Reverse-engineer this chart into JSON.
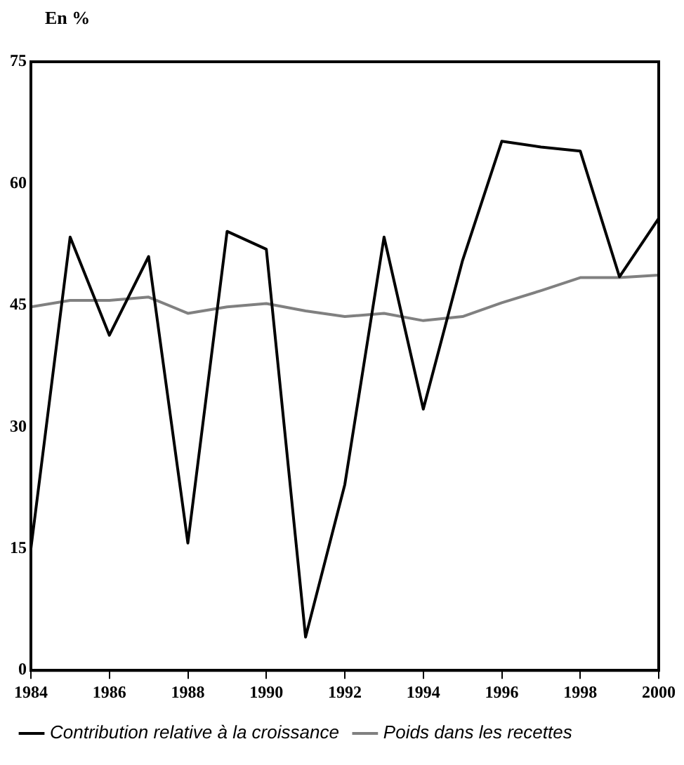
{
  "chart_data": {
    "type": "line",
    "ylabel": "En %",
    "x": [
      1984,
      1985,
      1986,
      1987,
      1988,
      1989,
      1990,
      1991,
      1992,
      1993,
      1994,
      1995,
      1996,
      1997,
      1998,
      1999,
      2000
    ],
    "series": [
      {
        "name": "Contribution relative à la croissance",
        "color": "#000000",
        "values": [
          15.0,
          53.4,
          41.3,
          51.0,
          15.7,
          54.1,
          51.9,
          4.1,
          22.9,
          53.4,
          32.2,
          50.5,
          65.2,
          64.5,
          64.0,
          48.5,
          55.7
        ]
      },
      {
        "name": "Poids dans les recettes",
        "color": "#808080",
        "values": [
          44.8,
          45.6,
          45.6,
          46.0,
          44.0,
          44.8,
          45.2,
          44.3,
          43.6,
          44.0,
          43.1,
          43.6,
          45.3,
          46.8,
          48.4,
          48.4,
          48.7
        ]
      }
    ],
    "xlim": [
      1984,
      2000
    ],
    "xticks": [
      1984,
      1986,
      1988,
      1990,
      1992,
      1994,
      1996,
      1998,
      2000
    ],
    "ylim": [
      0,
      75
    ],
    "yticks": [
      0,
      15,
      30,
      45,
      60,
      75
    ],
    "grid": false,
    "legend": "bottom",
    "marker": "none",
    "line_style": "solid"
  }
}
